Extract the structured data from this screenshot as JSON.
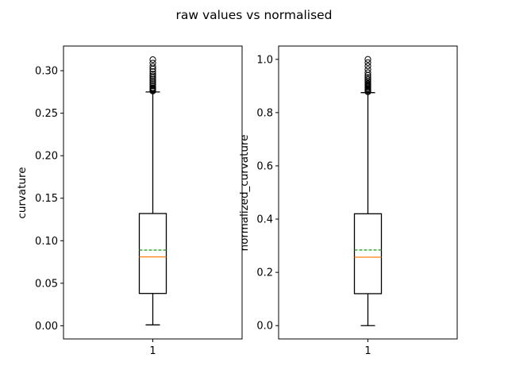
{
  "figure": {
    "title": "raw values vs normalised"
  },
  "colors": {
    "median": "#ff7f0e",
    "mean": "#2ca02c",
    "box": "#000000"
  },
  "chart_data": [
    {
      "type": "box",
      "title": "",
      "xlabel": "",
      "ylabel": "curvature",
      "categories": [
        "1"
      ],
      "ylim": [
        -0.0155,
        0.329
      ],
      "yticks": [
        0.0,
        0.05,
        0.1,
        0.15,
        0.2,
        0.25,
        0.3
      ],
      "ytick_labels": [
        "0.00",
        "0.05",
        "0.10",
        "0.15",
        "0.20",
        "0.25",
        "0.30"
      ],
      "grid": false,
      "box": {
        "whisker_low": 0.001,
        "q1": 0.038,
        "median": 0.081,
        "mean": 0.089,
        "q3": 0.132,
        "whisker_high": 0.275,
        "outliers": [
          0.276,
          0.277,
          0.278,
          0.279,
          0.28,
          0.282,
          0.284,
          0.286,
          0.288,
          0.29,
          0.292,
          0.294,
          0.296,
          0.299,
          0.302,
          0.305,
          0.309,
          0.313
        ]
      }
    },
    {
      "type": "box",
      "title": "",
      "xlabel": "",
      "ylabel": "normalized_curvature",
      "categories": [
        "1"
      ],
      "ylim": [
        -0.05,
        1.05
      ],
      "yticks": [
        0.0,
        0.2,
        0.4,
        0.6,
        0.8,
        1.0
      ],
      "ytick_labels": [
        "0.0",
        "0.2",
        "0.4",
        "0.6",
        "0.8",
        "1.0"
      ],
      "grid": false,
      "box": {
        "whisker_low": 0.0,
        "q1": 0.12,
        "median": 0.257,
        "mean": 0.284,
        "q3": 0.42,
        "whisker_high": 0.875,
        "outliers": [
          0.878,
          0.882,
          0.886,
          0.889,
          0.893,
          0.897,
          0.901,
          0.905,
          0.909,
          0.914,
          0.919,
          0.925,
          0.932,
          0.94,
          0.95,
          0.962,
          0.975,
          0.988,
          1.0
        ]
      }
    }
  ]
}
